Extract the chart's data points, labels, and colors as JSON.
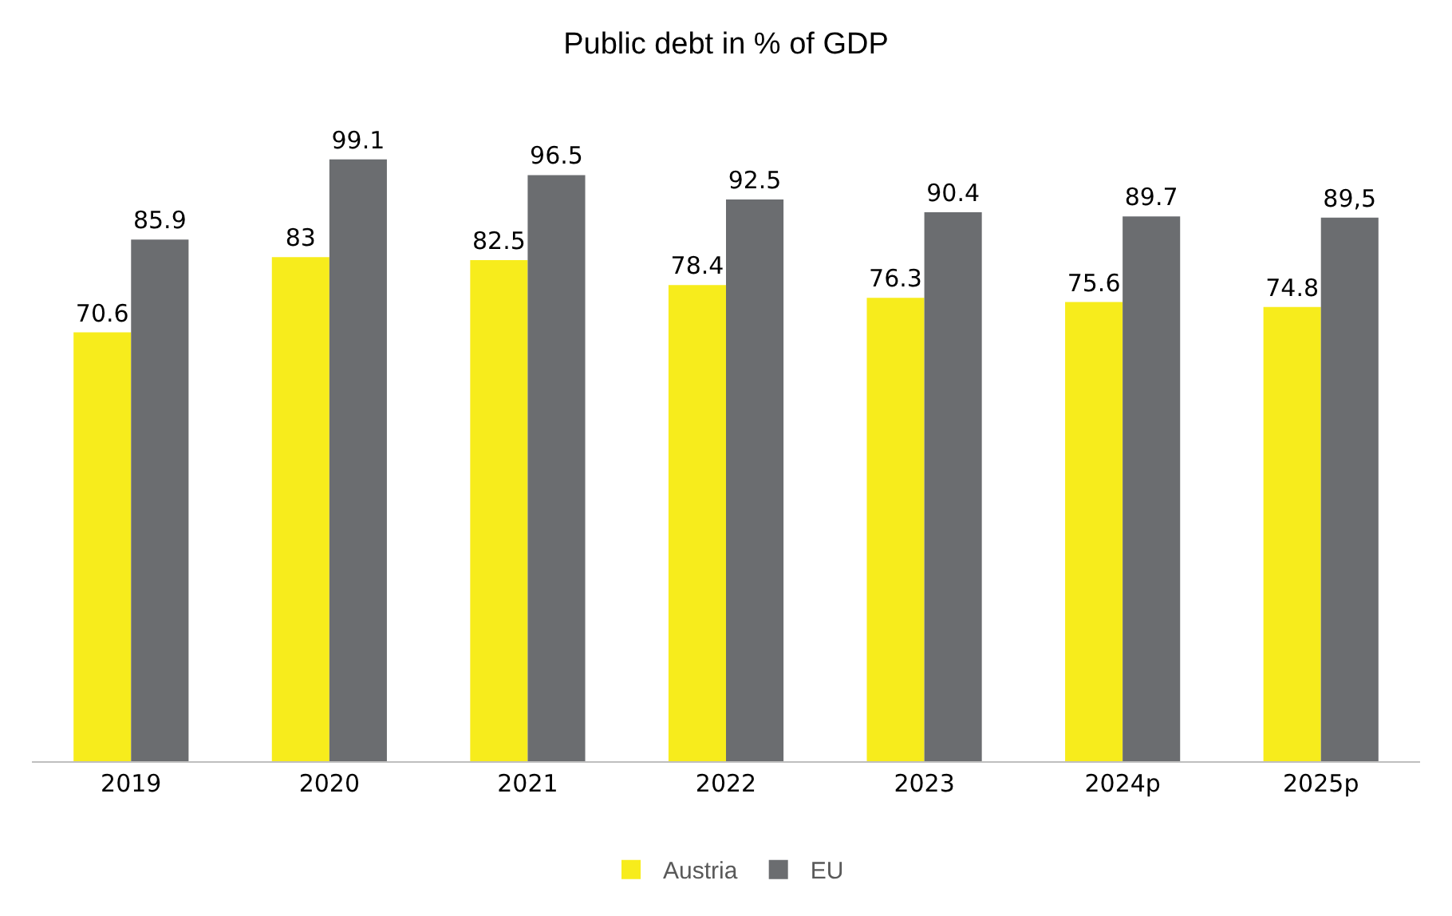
{
  "chart_data": {
    "type": "bar",
    "title": "Public debt in % of GDP",
    "categories": [
      "2019",
      "2020",
      "2021",
      "2022",
      "2023",
      "2024p",
      "2025p"
    ],
    "series": [
      {
        "name": "Austria",
        "color": "#f7ec1c",
        "values": [
          70.6,
          83,
          82.5,
          78.4,
          76.3,
          75.6,
          74.8
        ],
        "value_labels": [
          "70.6",
          "83",
          "82.5",
          "78.4",
          "76.3",
          "75.6",
          "74.8"
        ]
      },
      {
        "name": "EU",
        "color": "#6b6d70",
        "values": [
          85.9,
          99.1,
          96.5,
          92.5,
          90.4,
          89.7,
          89.5
        ],
        "value_labels": [
          "85.9",
          "99.1",
          "96.5",
          "92.5",
          "90.4",
          "89.7",
          "89,5"
        ]
      }
    ],
    "legend": "bottom"
  }
}
